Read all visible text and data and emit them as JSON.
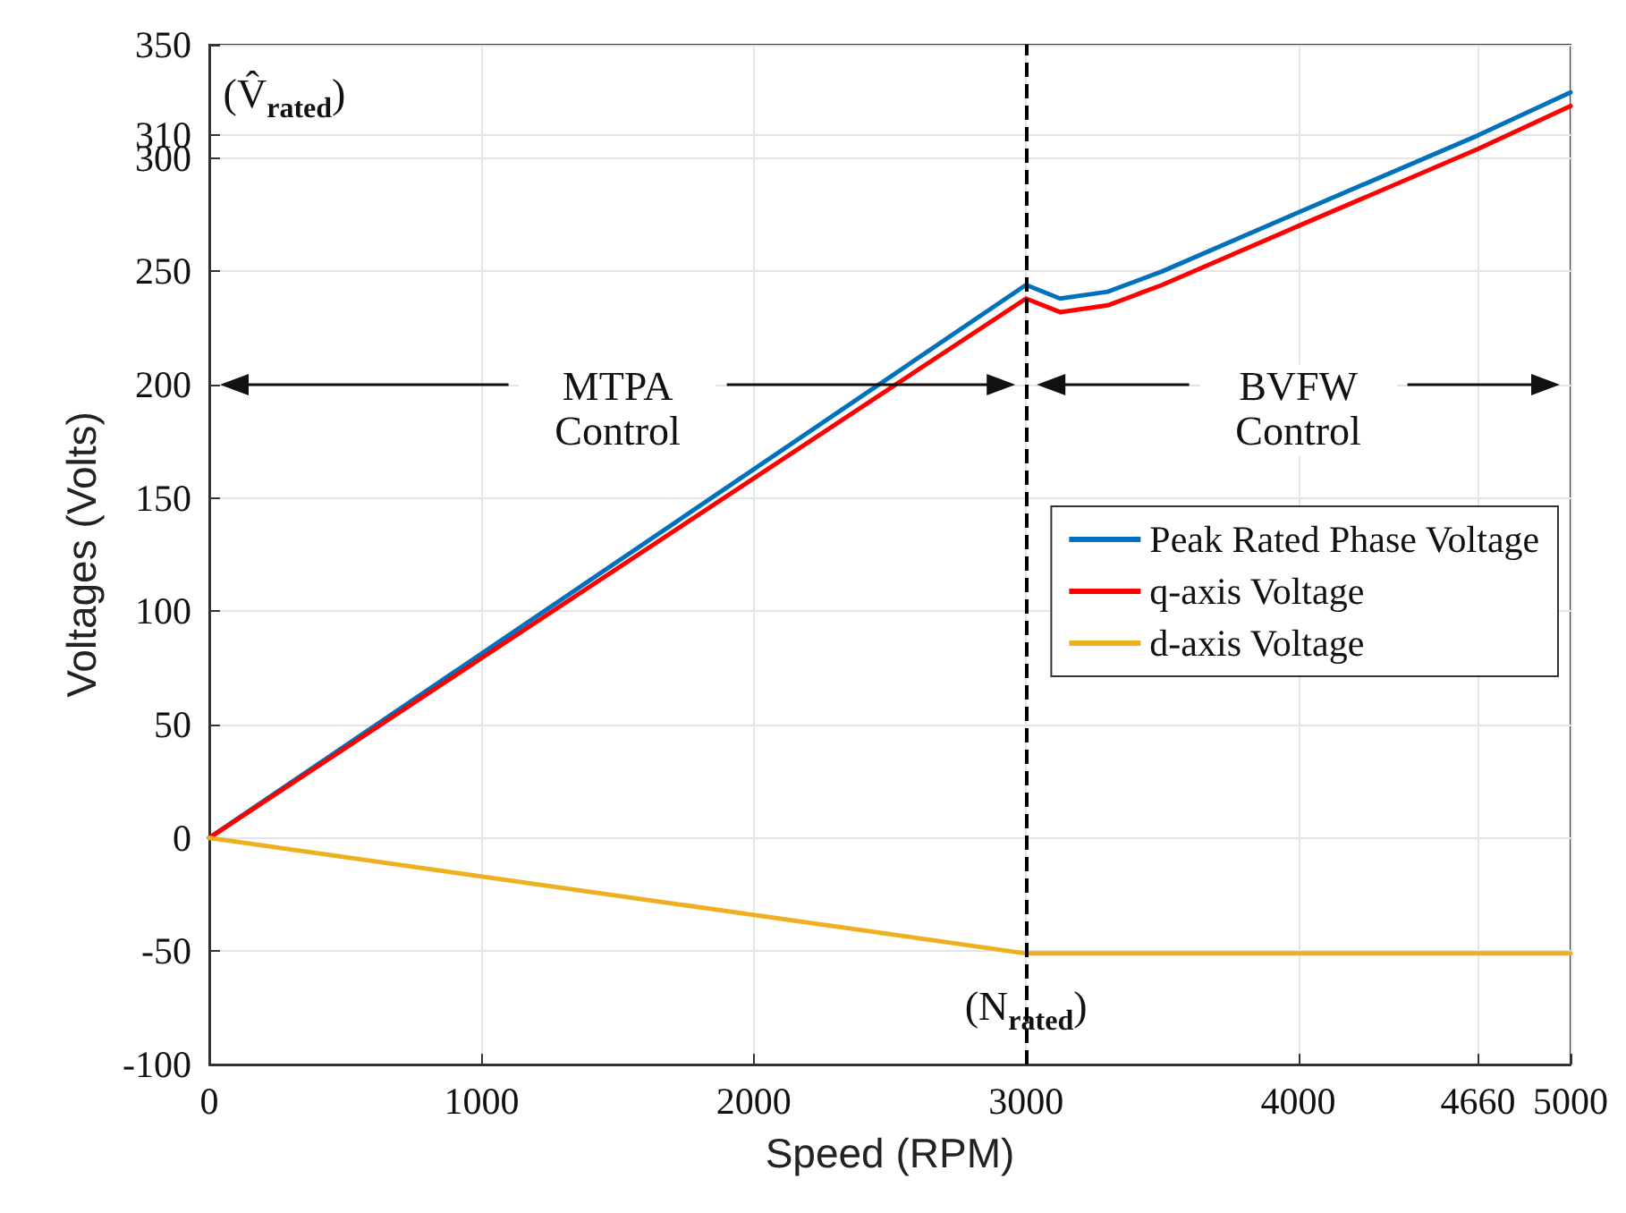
{
  "chart_data": {
    "type": "line",
    "xlabel": "Speed (RPM)",
    "ylabel": "Voltages (Volts)",
    "series": [
      {
        "name": "Peak Rated Phase Voltage",
        "color": "#0072bd",
        "x": [
          0,
          3000,
          3125,
          3300,
          3500,
          4000,
          4660,
          5000
        ],
        "values": [
          0,
          244,
          238,
          241,
          250,
          276,
          310,
          329
        ]
      },
      {
        "name": "q-axis Voltage",
        "color": "#ff0000",
        "x": [
          0,
          3000,
          3125,
          3300,
          3500,
          4000,
          4660,
          5000
        ],
        "values": [
          0,
          238,
          232,
          235,
          244,
          270,
          304,
          323
        ]
      },
      {
        "name": "d-axis Voltage",
        "color": "#edb120",
        "x": [
          0,
          3000,
          5000
        ],
        "values": [
          0,
          -51,
          -51
        ]
      }
    ],
    "xlim": [
      0,
      5000
    ],
    "xticks": [
      0,
      1000,
      2000,
      3000,
      4000,
      4660,
      5000
    ],
    "ylim": [
      -100,
      350
    ],
    "yticks": [
      -100,
      -50,
      0,
      50,
      100,
      150,
      200,
      250,
      300,
      310,
      350
    ],
    "ref_lines": [
      {
        "axis": "x",
        "value": 3000,
        "color": "#000000",
        "line_style": "dashed",
        "label": "(N$_{rated}$)"
      }
    ],
    "annotations": [
      "MTPA Control",
      "BVFW Control",
      "(V̂$_{rated}$)"
    ],
    "grid": true,
    "legend": "right",
    "marker": "none",
    "line_style": "solid"
  }
}
